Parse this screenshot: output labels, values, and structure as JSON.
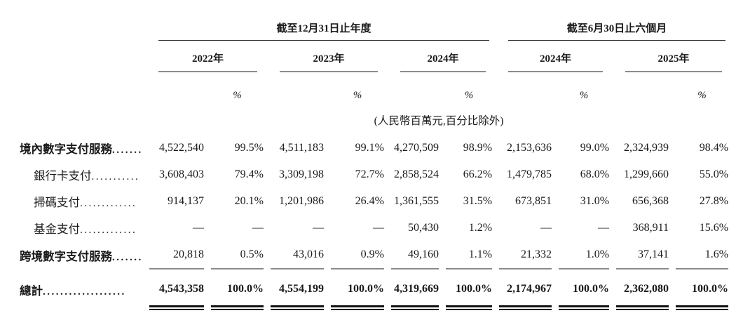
{
  "colors": {
    "background": "#ffffff",
    "text": "#1a1a1a",
    "rule_gray": "#8a8a8a",
    "rule_black": "#111111"
  },
  "header": {
    "group_annual": {
      "title": "截至12月31日止年度"
    },
    "group_interim": {
      "title": "截至6月30日止六個月"
    },
    "years": [
      "2022年",
      "2023年",
      "2024年",
      "2024年",
      "2025年"
    ],
    "percent_label": "%",
    "unit_note": "(人民幣百萬元,百分比除外)"
  },
  "rows": [
    {
      "label": "境內數字支付服務",
      "leader": ".......",
      "cells": [
        "4,522,540",
        "99.5%",
        "4,511,183",
        "99.1%",
        "4,270,509",
        "98.9%",
        "2,153,636",
        "99.0%",
        "2,324,939",
        "98.4%"
      ]
    },
    {
      "label": "銀行卡支付",
      "leader": "...........",
      "cells": [
        "3,608,403",
        "79.4%",
        "3,309,198",
        "72.7%",
        "2,858,524",
        "66.2%",
        "1,479,785",
        "68.0%",
        "1,299,660",
        "55.0%"
      ]
    },
    {
      "label": "掃碼支付",
      "leader": ".............",
      "cells": [
        "914,137",
        "20.1%",
        "1,201,986",
        "26.4%",
        "1,361,555",
        "31.5%",
        "673,851",
        "31.0%",
        "656,368",
        "27.8%"
      ]
    },
    {
      "label": "基金支付",
      "leader": ".............",
      "cells": [
        "—",
        "—",
        "—",
        "—",
        "50,430",
        "1.2%",
        "—",
        "—",
        "368,911",
        "15.6%"
      ]
    },
    {
      "label": "跨境數字支付服務",
      "leader": ".......",
      "cells": [
        "20,818",
        "0.5%",
        "43,016",
        "0.9%",
        "49,160",
        "1.1%",
        "21,332",
        "1.0%",
        "37,141",
        "1.6%"
      ]
    },
    {
      "label": "總計",
      "leader": "...................",
      "cells": [
        "4,543,358",
        "100.0%",
        "4,554,199",
        "100.0%",
        "4,319,669",
        "100.0%",
        "2,174,967",
        "100.0%",
        "2,362,080",
        "100.0%"
      ]
    }
  ]
}
